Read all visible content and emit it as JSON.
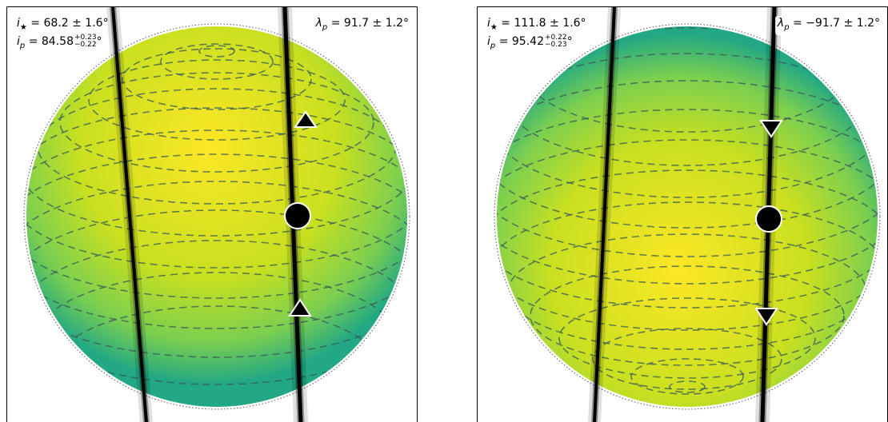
{
  "panels": [
    {
      "inc_star": "68.2 ± 1.6",
      "inc_planet_value": "84.58",
      "inc_planet_up": "+0.23",
      "inc_planet_down": "−0.22",
      "lambda": "91.7 ± 1.2",
      "degree": "°",
      "direction": "up"
    },
    {
      "inc_star": "111.8 ± 1.6",
      "inc_planet_value": "95.42",
      "inc_planet_up": "+0.22",
      "inc_planet_down": "−0.23",
      "lambda": "−91.7 ± 1.2",
      "degree": "°",
      "direction": "down"
    }
  ],
  "colors": {
    "star_center": "#fde725",
    "star_mid": "#b5de2b",
    "star_edge": "#2a9d8f",
    "latitude_lines": "#3a5a5a",
    "transit_chord": "#000000"
  }
}
